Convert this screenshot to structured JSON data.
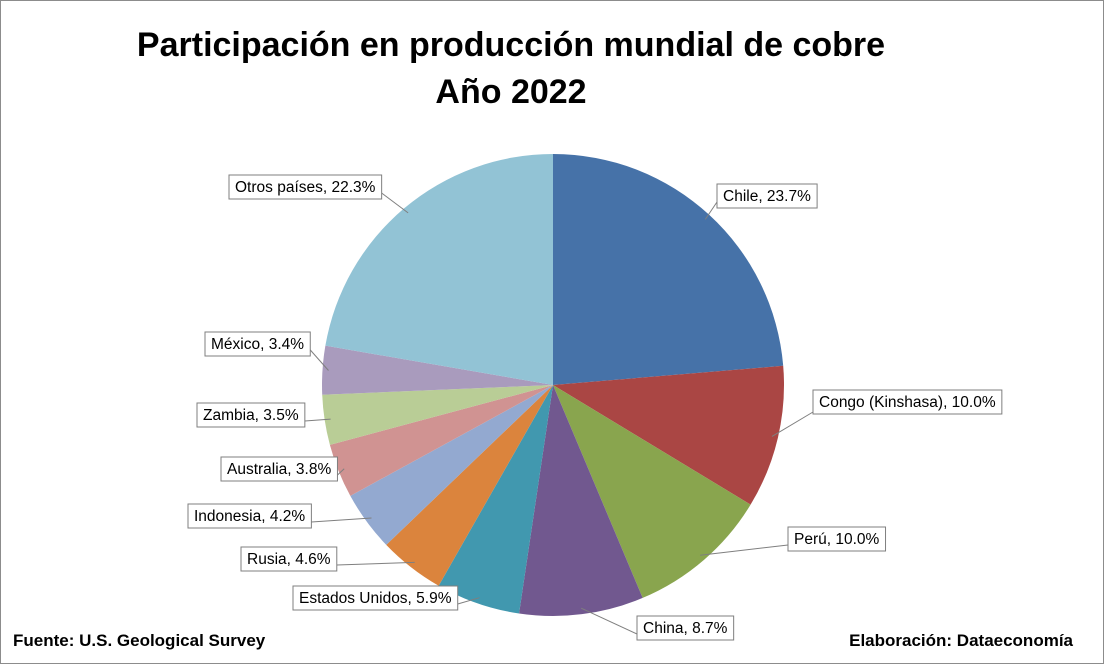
{
  "chart_data": {
    "type": "pie",
    "title": "Participación en producción mundial de cobre",
    "subtitle": "Año 2022",
    "slices": [
      {
        "label": "Chile, 23.7%",
        "value": 23.7,
        "color": "#4672a8"
      },
      {
        "label": "Congo (Kinshasa), 10.0%",
        "value": 10.0,
        "color": "#aa4644"
      },
      {
        "label": "Perú, 10.0%",
        "value": 10.0,
        "color": "#89a54e"
      },
      {
        "label": "China, 8.7%",
        "value": 8.7,
        "color": "#71588f"
      },
      {
        "label": "Estados Unidos, 5.9%",
        "value": 5.9,
        "color": "#4198af"
      },
      {
        "label": "Rusia, 4.6%",
        "value": 4.6,
        "color": "#db843d"
      },
      {
        "label": "Indonesia, 4.2%",
        "value": 4.2,
        "color": "#93a9d0"
      },
      {
        "label": "Australia, 3.8%",
        "value": 3.8,
        "color": "#d09392"
      },
      {
        "label": "Zambia, 3.5%",
        "value": 3.5,
        "color": "#b9cd96"
      },
      {
        "label": "México, 3.4%",
        "value": 3.4,
        "color": "#a99bbd"
      },
      {
        "label": "Otros países, 22.3%",
        "value": 22.3,
        "color": "#92c3d5"
      }
    ]
  },
  "footer": {
    "source": "Fuente: U.S. Geological Survey",
    "credit": "Elaboración: Dataeconomía"
  }
}
